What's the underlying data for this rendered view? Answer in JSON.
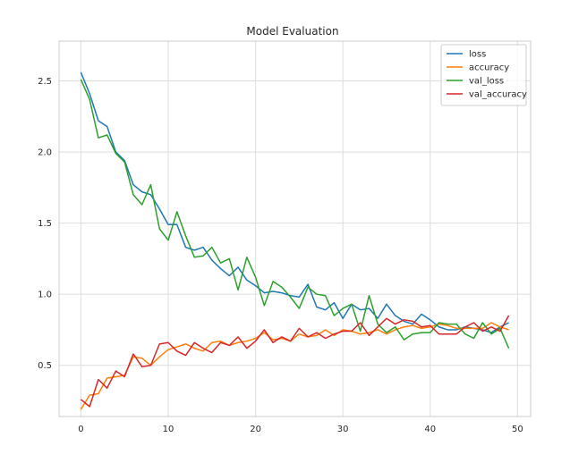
{
  "chart_data": {
    "type": "line",
    "title": "Model Evaluation",
    "xlabel": "",
    "ylabel": "",
    "xlim": [
      -2.5,
      51.5
    ],
    "ylim": [
      0.14,
      2.78
    ],
    "x_ticks": [
      0,
      10,
      20,
      30,
      40,
      50
    ],
    "y_ticks": [
      0.5,
      1.0,
      1.5,
      2.0,
      2.5
    ],
    "x_tick_labels": [
      "0",
      "10",
      "20",
      "30",
      "40",
      "50"
    ],
    "y_tick_labels": [
      "0.5",
      "1.0",
      "1.5",
      "2.0",
      "2.5"
    ],
    "grid": true,
    "legend_position": "top-right",
    "x": [
      0,
      1,
      2,
      3,
      4,
      5,
      6,
      7,
      8,
      9,
      10,
      11,
      12,
      13,
      14,
      15,
      16,
      17,
      18,
      19,
      20,
      21,
      22,
      23,
      24,
      25,
      26,
      27,
      28,
      29,
      30,
      31,
      32,
      33,
      34,
      35,
      36,
      37,
      38,
      39,
      40,
      41,
      42,
      43,
      44,
      45,
      46,
      47,
      48,
      49
    ],
    "series": [
      {
        "name": "loss",
        "color": "#1f77b4",
        "values": [
          2.56,
          2.41,
          2.22,
          2.18,
          2.0,
          1.94,
          1.77,
          1.72,
          1.7,
          1.6,
          1.49,
          1.49,
          1.33,
          1.31,
          1.33,
          1.24,
          1.18,
          1.13,
          1.19,
          1.1,
          1.06,
          1.01,
          1.02,
          1.01,
          0.99,
          0.98,
          1.07,
          0.91,
          0.89,
          0.94,
          0.83,
          0.93,
          0.89,
          0.9,
          0.83,
          0.93,
          0.85,
          0.81,
          0.79,
          0.86,
          0.82,
          0.77,
          0.75,
          0.75,
          0.77,
          0.76,
          0.75,
          0.73,
          0.77,
          0.8
        ]
      },
      {
        "name": "accuracy",
        "color": "#ff7f0e",
        "values": [
          0.19,
          0.29,
          0.3,
          0.41,
          0.42,
          0.43,
          0.56,
          0.55,
          0.5,
          0.56,
          0.61,
          0.63,
          0.65,
          0.62,
          0.6,
          0.66,
          0.67,
          0.64,
          0.66,
          0.67,
          0.69,
          0.73,
          0.68,
          0.69,
          0.67,
          0.72,
          0.7,
          0.71,
          0.75,
          0.71,
          0.75,
          0.74,
          0.72,
          0.73,
          0.75,
          0.72,
          0.75,
          0.77,
          0.78,
          0.76,
          0.77,
          0.79,
          0.78,
          0.76,
          0.76,
          0.76,
          0.76,
          0.8,
          0.77,
          0.75
        ]
      },
      {
        "name": "val_loss",
        "color": "#2ca02c",
        "values": [
          2.51,
          2.37,
          2.1,
          2.12,
          1.99,
          1.93,
          1.7,
          1.63,
          1.77,
          1.46,
          1.38,
          1.58,
          1.41,
          1.26,
          1.27,
          1.33,
          1.22,
          1.25,
          1.03,
          1.26,
          1.12,
          0.92,
          1.09,
          1.05,
          0.98,
          0.9,
          1.05,
          1.0,
          0.99,
          0.85,
          0.9,
          0.93,
          0.74,
          0.99,
          0.79,
          0.73,
          0.77,
          0.68,
          0.72,
          0.73,
          0.73,
          0.8,
          0.79,
          0.79,
          0.72,
          0.69,
          0.8,
          0.72,
          0.76,
          0.62
        ]
      },
      {
        "name": "val_accuracy",
        "color": "#d62728",
        "values": [
          0.26,
          0.21,
          0.4,
          0.34,
          0.46,
          0.42,
          0.58,
          0.49,
          0.5,
          0.65,
          0.66,
          0.6,
          0.57,
          0.66,
          0.62,
          0.59,
          0.66,
          0.64,
          0.7,
          0.62,
          0.67,
          0.75,
          0.66,
          0.7,
          0.67,
          0.76,
          0.7,
          0.73,
          0.69,
          0.72,
          0.74,
          0.74,
          0.8,
          0.71,
          0.77,
          0.83,
          0.79,
          0.82,
          0.81,
          0.77,
          0.78,
          0.72,
          0.72,
          0.72,
          0.77,
          0.8,
          0.74,
          0.77,
          0.74,
          0.85
        ]
      }
    ]
  },
  "colors": {
    "background": "#ffffff",
    "grid": "#dddddd",
    "axis_edge": "#cccccc",
    "text": "#262626"
  }
}
